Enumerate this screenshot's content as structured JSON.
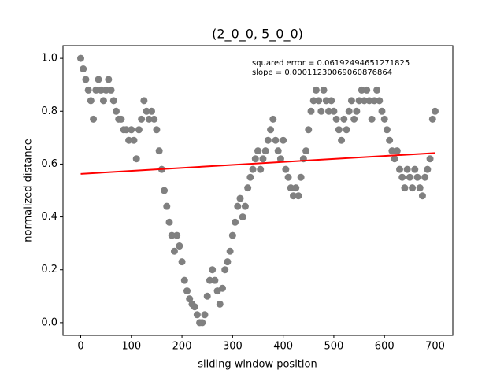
{
  "chart_data": {
    "type": "scatter",
    "title": "(2_0_0, 5_0_0)",
    "x_label": "sliding window position",
    "y_label": "normalized distance",
    "annotations": [
      "squared error = 0.06192494651271825",
      "slope = 0.00011230069060876864"
    ],
    "xlim": [
      -35,
      735
    ],
    "ylim": [
      -0.048,
      1.048
    ],
    "xticks": [
      0,
      100,
      200,
      300,
      400,
      500,
      600,
      700
    ],
    "yticks": [
      {
        "value": 0,
        "label": "0.0"
      },
      0.2,
      0.4,
      0.6,
      0.8,
      {
        "value": 1,
        "label": "1.0"
      }
    ],
    "series": [
      {
        "style": "markers",
        "color": "#808080",
        "x": [
          0,
          5,
          10,
          15,
          20,
          25,
          30,
          35,
          40,
          45,
          50,
          55,
          60,
          65,
          70,
          75,
          80,
          85,
          90,
          95,
          100,
          105,
          110,
          115,
          120,
          125,
          130,
          135,
          140,
          145,
          150,
          155,
          160,
          165,
          170,
          175,
          180,
          185,
          190,
          195,
          200,
          205,
          210,
          215,
          220,
          225,
          230,
          235,
          240,
          245,
          250,
          255,
          260,
          265,
          270,
          275,
          280,
          285,
          290,
          295,
          300,
          305,
          310,
          315,
          320,
          325,
          330,
          335,
          340,
          345,
          350,
          355,
          360,
          365,
          370,
          375,
          380,
          385,
          390,
          395,
          400,
          405,
          410,
          415,
          420,
          425,
          430,
          435,
          440,
          445,
          450,
          455,
          460,
          465,
          470,
          475,
          480,
          485,
          490,
          495,
          500,
          505,
          510,
          515,
          520,
          525,
          530,
          535,
          540,
          545,
          550,
          555,
          560,
          565,
          570,
          575,
          580,
          585,
          590,
          595,
          600,
          605,
          610,
          615,
          620,
          625,
          630,
          635,
          640,
          645,
          650,
          655,
          660,
          665,
          670,
          675,
          680,
          685,
          690,
          695,
          700
        ],
        "values": [
          1.0,
          0.96,
          0.92,
          0.88,
          0.84,
          0.77,
          0.88,
          0.92,
          0.88,
          0.84,
          0.88,
          0.92,
          0.88,
          0.84,
          0.8,
          0.77,
          0.77,
          0.73,
          0.73,
          0.69,
          0.73,
          0.69,
          0.62,
          0.73,
          0.77,
          0.84,
          0.8,
          0.77,
          0.8,
          0.77,
          0.73,
          0.65,
          0.58,
          0.5,
          0.44,
          0.38,
          0.33,
          0.27,
          0.33,
          0.29,
          0.23,
          0.16,
          0.12,
          0.09,
          0.07,
          0.06,
          0.03,
          0,
          0,
          0.03,
          0.1,
          0.16,
          0.2,
          0.16,
          0.12,
          0.07,
          0.13,
          0.2,
          0.23,
          0.27,
          0.33,
          0.38,
          0.44,
          0.47,
          0.4,
          0.44,
          0.51,
          0.55,
          0.58,
          0.62,
          0.65,
          0.58,
          0.62,
          0.65,
          0.69,
          0.73,
          0.77,
          0.69,
          0.65,
          0.62,
          0.69,
          0.58,
          0.55,
          0.51,
          0.48,
          0.51,
          0.48,
          0.55,
          0.62,
          0.65,
          0.73,
          0.8,
          0.84,
          0.88,
          0.84,
          0.8,
          0.88,
          0.84,
          0.8,
          0.84,
          0.8,
          0.77,
          0.73,
          0.69,
          0.77,
          0.73,
          0.8,
          0.84,
          0.77,
          0.8,
          0.84,
          0.88,
          0.84,
          0.88,
          0.84,
          0.77,
          0.84,
          0.88,
          0.84,
          0.8,
          0.77,
          0.73,
          0.69,
          0.65,
          0.62,
          0.65,
          0.58,
          0.55,
          0.51,
          0.58,
          0.55,
          0.51,
          0.58,
          0.55,
          0.51,
          0.48,
          0.55,
          0.58,
          0.62,
          0.77,
          0.8
        ]
      },
      {
        "style": "line",
        "color": "#ff0000",
        "x": [
          0,
          700
        ],
        "values": [
          0.563,
          0.642
        ]
      }
    ]
  }
}
